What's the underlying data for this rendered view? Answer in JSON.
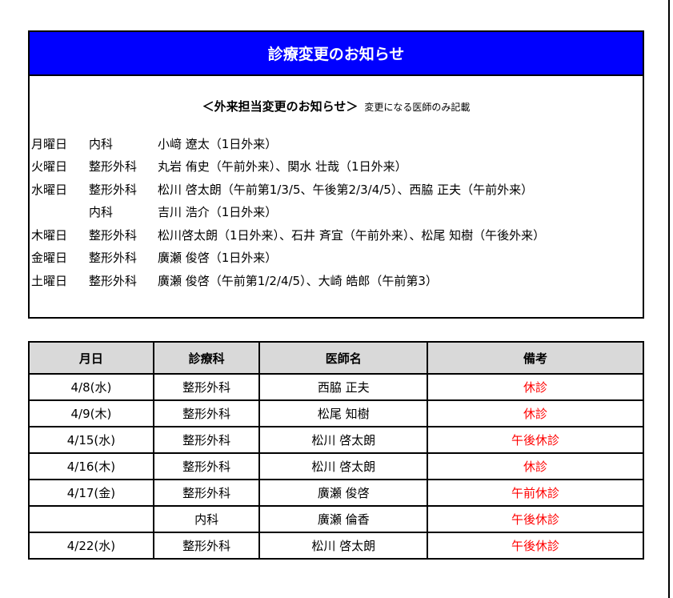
{
  "header": {
    "title": "診療変更のお知らせ"
  },
  "notice": {
    "heading": "＜外来担当変更のお知らせ＞",
    "note": "変更になる医師のみ記載",
    "rows": [
      {
        "day": "月曜日",
        "dept": "内科",
        "doctors": "小﨑 遼太（1日外来）"
      },
      {
        "day": "火曜日",
        "dept": "整形外科",
        "doctors": "丸岩 侑史（午前外来）、関水 壮哉（1日外来）"
      },
      {
        "day": "水曜日",
        "dept": "整形外科",
        "doctors": "松川 啓太朗（午前第1/3/5、午後第2/3/4/5）、西脇 正夫（午前外来）"
      },
      {
        "day": "",
        "dept": "内科",
        "doctors": "吉川 浩介（1日外来）"
      },
      {
        "day": "木曜日",
        "dept": "整形外科",
        "doctors": "松川啓太朗（1日外来）、石井 斉宜（午前外来）、松尾 知樹（午後外来）"
      },
      {
        "day": "金曜日",
        "dept": "整形外科",
        "doctors": "廣瀬 俊啓（1日外来）"
      },
      {
        "day": "土曜日",
        "dept": "整形外科",
        "doctors": "廣瀬 俊啓（午前第1/2/4/5）、大崎 皓郎（午前第3）"
      }
    ]
  },
  "table": {
    "headers": [
      "月日",
      "診療科",
      "医師名",
      "備考"
    ],
    "rows": [
      [
        "4/8(水)",
        "整形外科",
        "西脇 正夫",
        "休診"
      ],
      [
        "4/9(木)",
        "整形外科",
        "松尾 知樹",
        "休診"
      ],
      [
        "4/15(水)",
        "整形外科",
        "松川 啓太朗",
        "午後休診"
      ],
      [
        "4/16(木)",
        "整形外科",
        "松川 啓太朗",
        "休診"
      ],
      [
        "4/17(金)",
        "整形外科",
        "廣瀬 俊啓",
        "午前休診"
      ],
      [
        "",
        "内科",
        "廣瀬 倫香",
        "午後休診"
      ],
      [
        "4/22(水)",
        "整形外科",
        "松川 啓太朗",
        "午後休診"
      ]
    ]
  },
  "colors": {
    "header_bg": "#0000ff",
    "remark": "#ff0000"
  }
}
